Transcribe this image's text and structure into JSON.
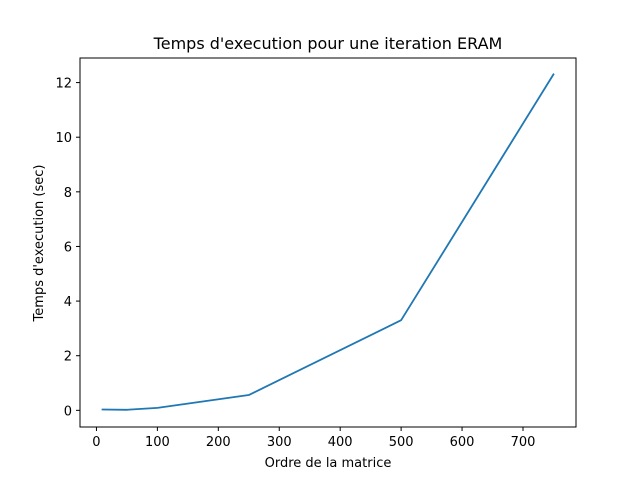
{
  "chart_data": {
    "type": "line",
    "title": "Temps d'execution pour une iteration ERAM",
    "xlabel": "Ordre de la matrice",
    "ylabel": "Temps d'execution (sec)",
    "xlim": [
      -27,
      787
    ],
    "ylim": [
      -0.61,
      12.9
    ],
    "x_ticks": [
      0,
      100,
      200,
      300,
      400,
      500,
      600,
      700
    ],
    "y_ticks": [
      0,
      2,
      4,
      6,
      8,
      10,
      12
    ],
    "grid": false,
    "series": [
      {
        "color": "#1f77b4",
        "x": [
          10,
          50,
          100,
          250,
          500,
          750
        ],
        "y": [
          0.03,
          0.02,
          0.09,
          0.56,
          3.3,
          12.3
        ]
      }
    ]
  }
}
